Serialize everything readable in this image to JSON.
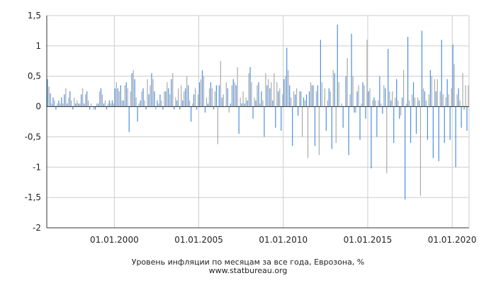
{
  "chart_data": {
    "type": "bar",
    "title": "Уровень инфляции по месяцам за все года, Еврозона, %",
    "source": "www.statbureau.org",
    "xlabel": "",
    "ylabel": "",
    "x_range": [
      "1996-01",
      "2020-12"
    ],
    "ylim": [
      -2,
      1.5
    ],
    "y_ticks": [
      -2,
      -1.5,
      -1,
      -0.5,
      0,
      0.5,
      1,
      1.5
    ],
    "y_tick_labels": [
      "-2",
      "-1,5",
      "-1",
      "-0,5",
      "0",
      "0,5",
      "1",
      "1,5"
    ],
    "x_ticks": [
      "2000-01",
      "2005-01",
      "2010-01",
      "2015-01",
      "2020-01"
    ],
    "x_tick_labels": [
      "01.01.2000",
      "01.01.2005",
      "01.01.2010",
      "01.01.2015",
      "01.01.2020"
    ],
    "grid": true,
    "colors": {
      "bars": "#4a90e2",
      "bars_light": "#a9aaaa",
      "grid": "#cccccc",
      "axis": "#333333"
    },
    "series": [
      {
        "name": "",
        "start": "1996-01",
        "frequency": "monthly",
        "values": [
          0.45,
          0.33,
          0.22,
          0.05,
          0.15,
          0.1,
          -0.05,
          0.05,
          0.1,
          0.05,
          0.15,
          0.05,
          0.2,
          0.3,
          0.05,
          0.15,
          0.25,
          0.1,
          -0.05,
          0.15,
          0.05,
          0.1,
          0.05,
          0.05,
          0.2,
          0.3,
          0.05,
          0.2,
          0.25,
          0.1,
          -0.05,
          0.05,
          0.0,
          -0.05,
          -0.05,
          0.05,
          0.05,
          0.25,
          0.3,
          0.2,
          0.05,
          0.1,
          -0.05,
          0.05,
          0.1,
          0.05,
          0.1,
          0.05,
          0.3,
          0.4,
          0.3,
          0.25,
          0.35,
          0.1,
          0.1,
          0.35,
          0.4,
          0.3,
          -0.42,
          0.25,
          0.55,
          0.6,
          0.45,
          0.15,
          -0.25,
          0.05,
          0.1,
          0.25,
          0.3,
          0.1,
          -0.05,
          0.45,
          0.2,
          0.35,
          0.55,
          0.45,
          0.25,
          -0.05,
          0.1,
          0.05,
          0.2,
          0.1,
          -0.05,
          0.25,
          0.25,
          0.4,
          0.3,
          0.2,
          0.45,
          0.55,
          -0.05,
          0.15,
          0.1,
          0.3,
          -0.05,
          0.35,
          0.1,
          0.25,
          0.3,
          0.5,
          0.35,
          0.1,
          -0.25,
          0.05,
          0.2,
          0.3,
          -0.05,
          0.2,
          0.4,
          0.45,
          0.6,
          0.5,
          -0.1,
          0.15,
          0.05,
          0.3,
          0.4,
          0.3,
          -0.05,
          0.25,
          0.35,
          -0.62,
          0.35,
          0.75,
          0.15,
          0.2,
          0.0,
          0.4,
          0.3,
          -0.1,
          0.05,
          0.35,
          0.45,
          0.4,
          0.35,
          0.65,
          -0.45,
          0.15,
          0.05,
          0.25,
          0.05,
          0.15,
          0.1,
          0.55,
          0.65,
          0.4,
          -0.2,
          0.15,
          0.1,
          0.35,
          0.4,
          0.05,
          0.25,
          0.1,
          -0.5,
          0.55,
          0.35,
          0.45,
          0.3,
          0.4,
          0.1,
          0.55,
          -0.35,
          0.4,
          0.25,
          0.3,
          -0.4,
          0.2,
          0.45,
          0.5,
          0.97,
          0.6,
          0.35,
          0.15,
          -0.65,
          0.25,
          0.2,
          0.3,
          -0.15,
          0.25,
          0.25,
          -0.5,
          0.15,
          0.1,
          0.2,
          -0.85,
          0.25,
          0.4,
          0.35,
          0.35,
          -0.65,
          0.25,
          0.35,
          -0.8,
          1.1,
          0.4,
          0.0,
          0.3,
          -0.4,
          0.1,
          0.3,
          0.25,
          -0.7,
          0.6,
          0.55,
          -0.6,
          1.35,
          0.4,
          0.0,
          0.05,
          -0.35,
          0.0,
          0.5,
          0.8,
          -0.8,
          0.2,
          1.2,
          0.5,
          -0.1,
          -0.1,
          0.25,
          0.35,
          -0.55,
          0.05,
          0.4,
          0.35,
          -0.2,
          1.1,
          0.25,
          0.3,
          -1.02,
          0.1,
          0.15,
          0.1,
          -0.5,
          0.1,
          0.5,
          0.05,
          -0.12,
          0.35,
          0.3,
          -1.1,
          0.95,
          0.25,
          0.1,
          0.25,
          -0.6,
          0.15,
          0.45,
          0.1,
          -0.2,
          -0.15,
          0.15,
          0.6,
          -1.53,
          0.05,
          1.15,
          0.1,
          -0.6,
          0.2,
          0.4,
          0.15,
          -0.45,
          0.15,
          0.1,
          -1.47,
          1.25,
          0.3,
          0.25,
          0.1,
          -0.55,
          0.2,
          0.6,
          0.5,
          -0.85,
          0.45,
          0.25,
          0.45,
          -0.9,
          0.25,
          1.1,
          0.2,
          -0.6,
          0.15,
          0.45,
          0.2,
          -0.55,
          0.3,
          1.02,
          0.7,
          -1.0,
          0.2,
          0.3,
          0.1,
          -0.35,
          0.55,
          -0.05,
          0.35,
          -0.4,
          0.35
        ]
      }
    ]
  }
}
